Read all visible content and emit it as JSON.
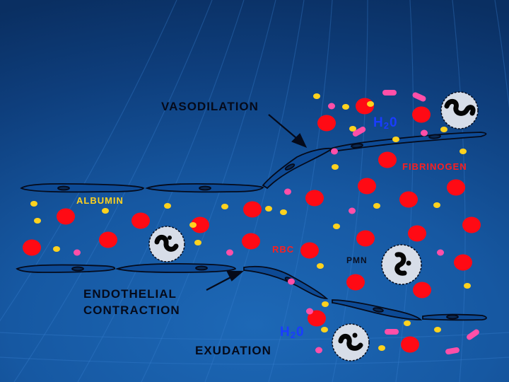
{
  "labels": {
    "vasodilation": "VASODILATION",
    "fibrinogen": "FIBRINOGEN",
    "albumin": "ALBUMIN",
    "rbc": "RBC",
    "pmn": "PMN",
    "endothelial_contraction_line1": "ENDOTHELIAL",
    "endothelial_contraction_line2": "CONTRACTION",
    "exudation": "EXUDATION",
    "water_top": {
      "h": "H",
      "sub": "2",
      "o": "0"
    },
    "water_bottom": {
      "h": "H",
      "sub": "2",
      "o": "0"
    }
  },
  "colors": {
    "background": "#1658a2",
    "rbc": "#ff0a14",
    "albumin": "#ffd21e",
    "fibrinogen": "#ff4fa8",
    "pmn_cell": "#d7dde8",
    "pmn_nucleus": "#050505",
    "endothelium_fill": "#0d4a95",
    "endothelium_outline": "#050a1a",
    "water": "#1a3cff",
    "label_red": "#ff1e1e"
  },
  "icons": [
    "red-blood-cell",
    "albumin-dot",
    "fibrinogen-rod",
    "neutrophil-cell",
    "endothelial-cell",
    "arrow"
  ]
}
